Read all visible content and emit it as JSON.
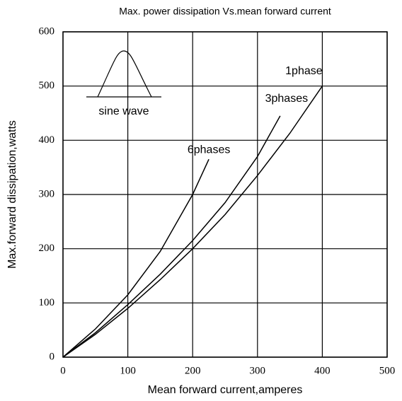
{
  "chart_data": {
    "type": "line",
    "title": "Max. power dissipation Vs.mean forward current",
    "xlabel": "Mean forward current,amperes",
    "ylabel": "Max.forward dissipation,watts",
    "annotation": "sine wave",
    "xlim": [
      0,
      500
    ],
    "xticks": [
      0,
      100,
      200,
      300,
      400,
      500
    ],
    "ylim": [
      0,
      600
    ],
    "yticks": [
      0,
      100,
      200,
      300,
      400,
      500,
      600
    ],
    "grid": true,
    "series": [
      {
        "name": "1phase",
        "color": "#000000",
        "x": [
          0,
          50,
          100,
          150,
          200,
          250,
          300,
          350,
          400
        ],
        "values": [
          0,
          42,
          90,
          143,
          200,
          263,
          335,
          413,
          500
        ]
      },
      {
        "name": "3phases",
        "color": "#000000",
        "x": [
          0,
          50,
          100,
          150,
          200,
          250,
          300,
          335
        ],
        "values": [
          0,
          45,
          97,
          153,
          215,
          285,
          370,
          445
        ]
      },
      {
        "name": "6phases",
        "color": "#000000",
        "x": [
          0,
          50,
          100,
          150,
          200,
          225
        ],
        "values": [
          0,
          52,
          115,
          195,
          300,
          365
        ]
      }
    ]
  }
}
